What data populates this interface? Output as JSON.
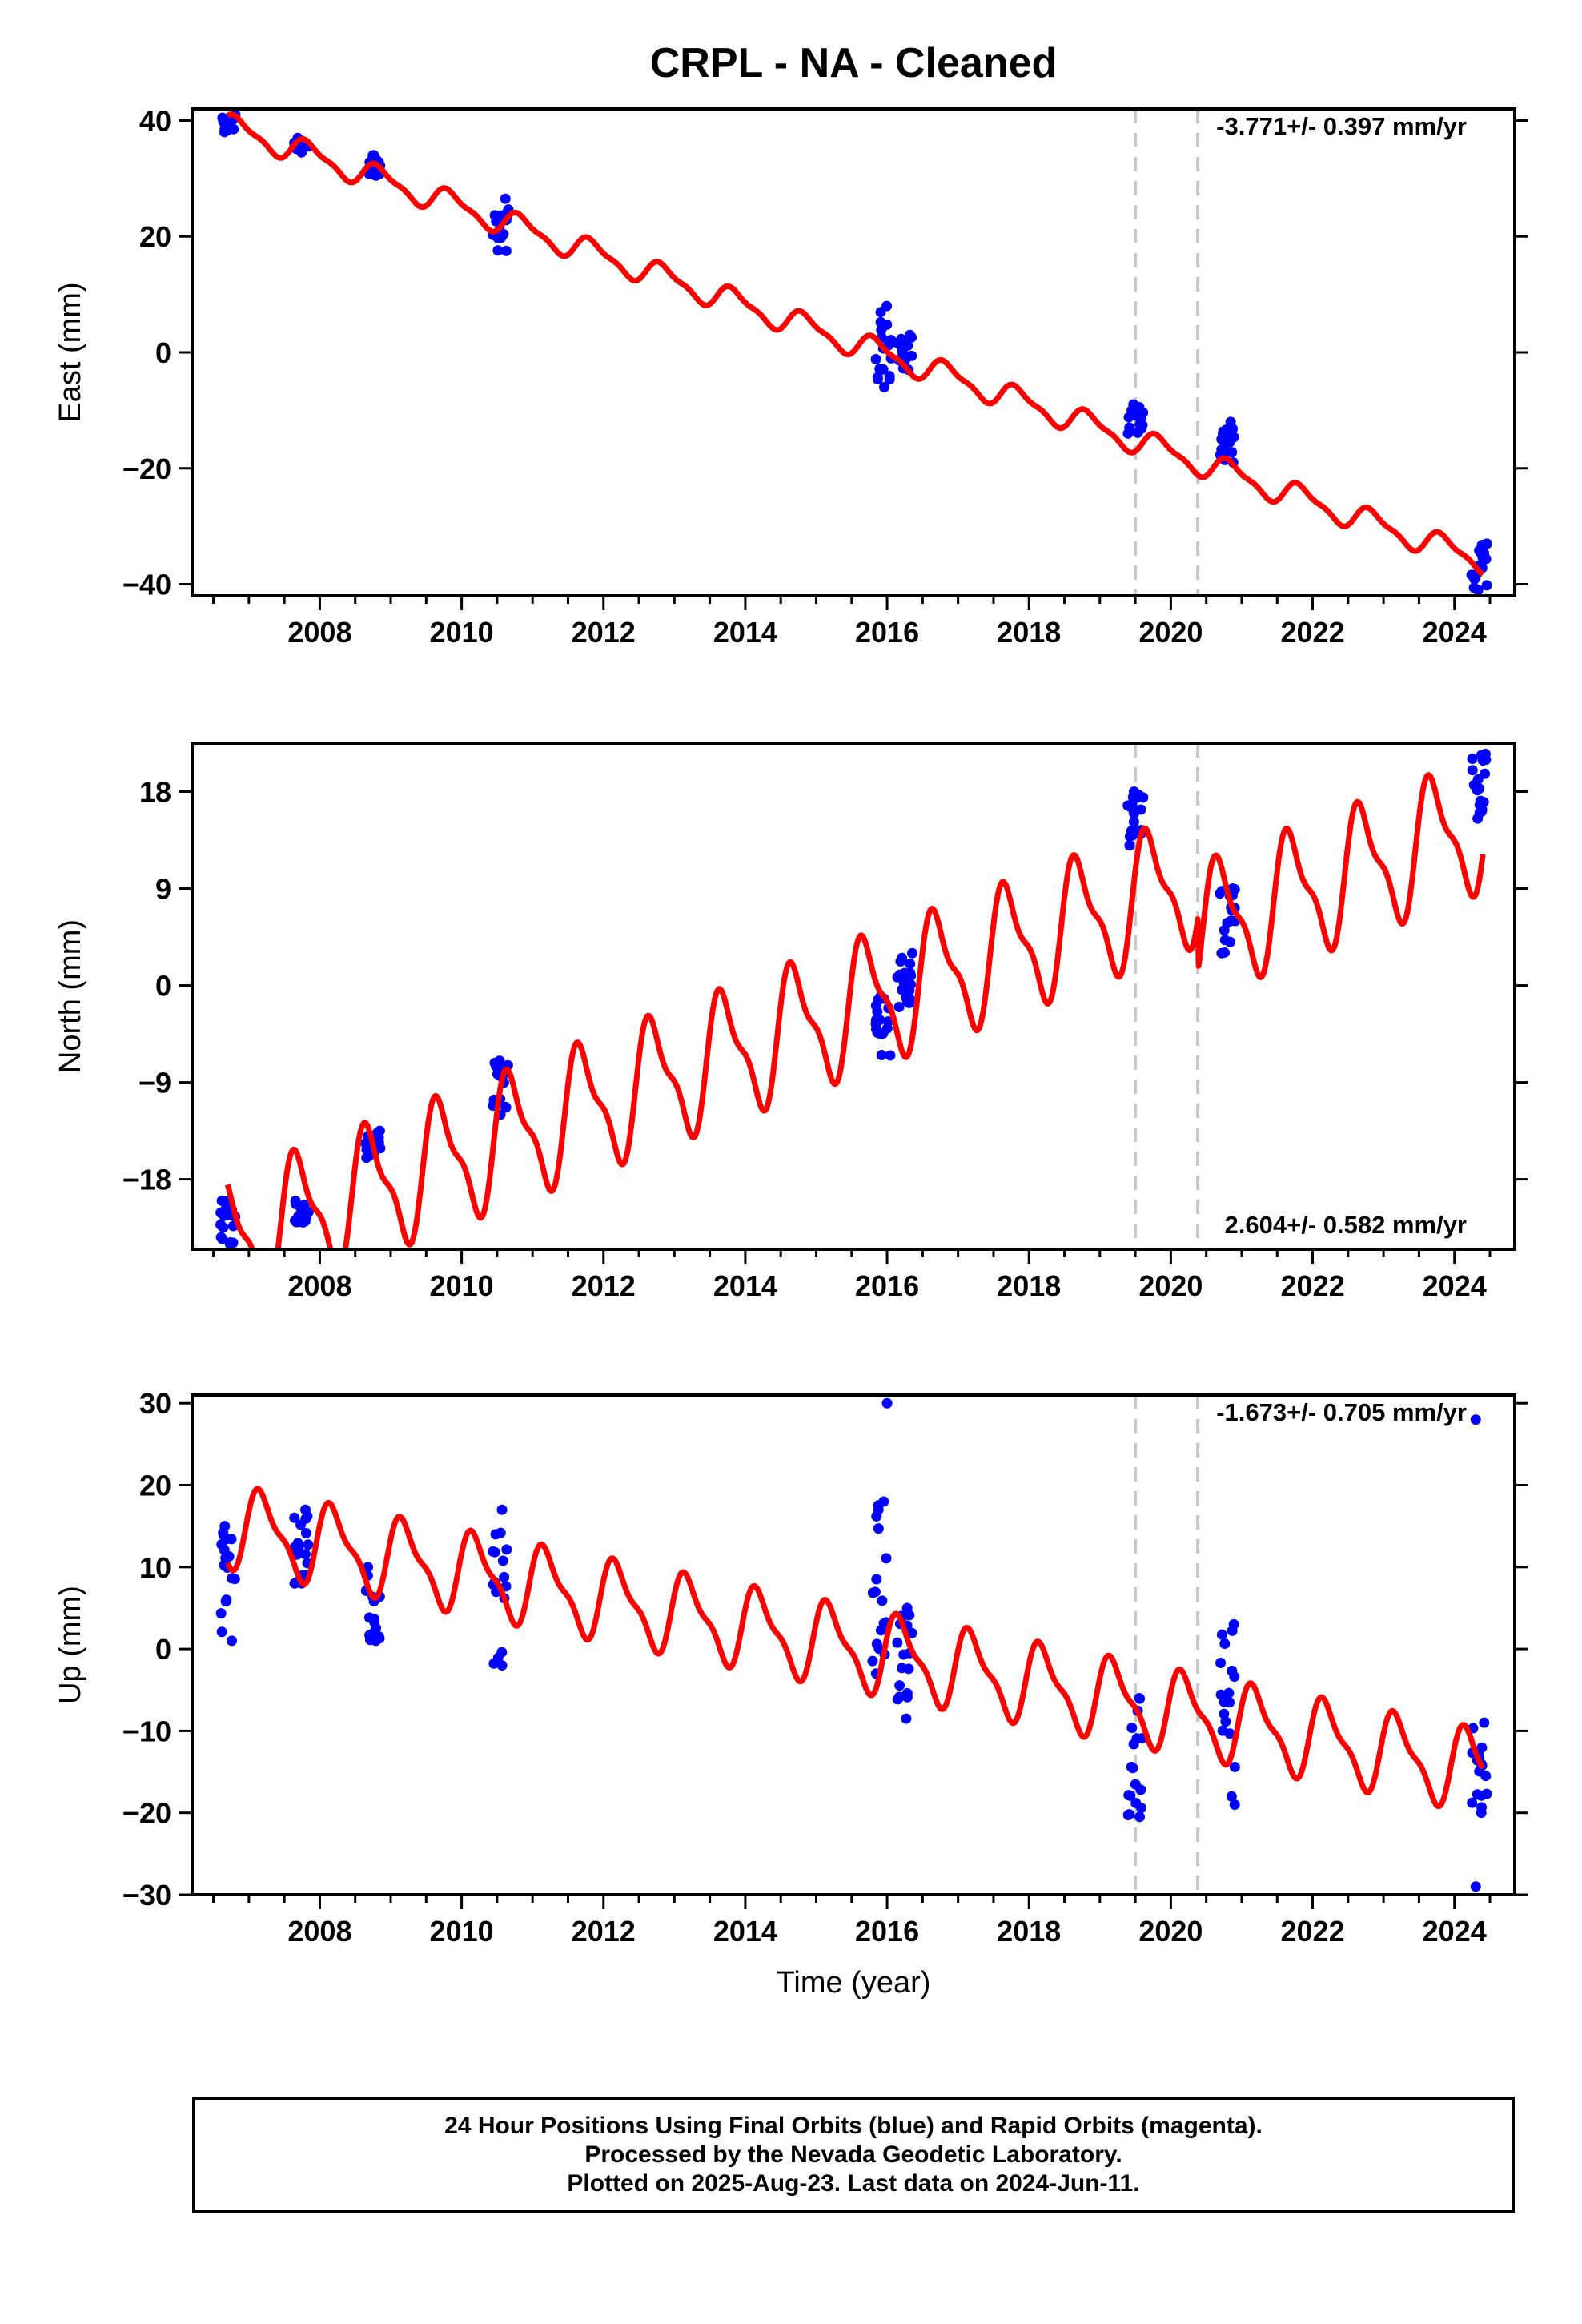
{
  "title": "CRPL  - NA - Cleaned",
  "colors": {
    "model": "#ff0000",
    "final_orbits": "#0000ff",
    "offset_line": "#c8c8c8",
    "frame": "#000000"
  },
  "chart_data": [
    {
      "type": "scatter",
      "component": "East",
      "ylabel": "East (mm)",
      "xlabel": "",
      "rate_label": "-3.771+/- 0.397 mm/yr",
      "rate_position": "top-right",
      "xlim": [
        2006.2,
        2024.85
      ],
      "ylim": [
        -42,
        42
      ],
      "yticks": [
        40,
        20,
        0,
        -20,
        -40
      ],
      "yticklabels": [
        "40",
        "20",
        "0",
        "−20",
        "−40"
      ],
      "xticks": [
        2008,
        2010,
        2012,
        2014,
        2016,
        2018,
        2020,
        2022,
        2024
      ],
      "offset_lines": [
        2019.5,
        2020.38
      ],
      "model": {
        "name": "model",
        "trend_start": 2006.7,
        "trend_end": 2024.4,
        "values_at_ends": [
          39,
          -36
        ],
        "seasonal_amplitude": 2.0,
        "phase_year": 0.6,
        "steps": []
      },
      "observations": [
        {
          "x": 2006.7,
          "y": [
            38,
            41
          ]
        },
        {
          "x": 2007.75,
          "y": [
            34.5,
            37
          ]
        },
        {
          "x": 2008.75,
          "y": [
            30.5,
            34
          ]
        },
        {
          "x": 2010.55,
          "y": [
            17.5,
            26.5
          ]
        },
        {
          "x": 2015.95,
          "y": [
            -6,
            8
          ]
        },
        {
          "x": 2016.25,
          "y": [
            -3,
            3
          ]
        },
        {
          "x": 2019.5,
          "y": [
            -14,
            -9
          ]
        },
        {
          "x": 2020.8,
          "y": [
            -19,
            -12
          ]
        },
        {
          "x": 2024.35,
          "y": [
            -41,
            -33
          ]
        }
      ]
    },
    {
      "type": "scatter",
      "component": "North",
      "ylabel": "North (mm)",
      "xlabel": "",
      "rate_label": "2.604+/- 0.582 mm/yr",
      "rate_position": "bottom-right",
      "xlim": [
        2006.2,
        2024.85
      ],
      "ylim": [
        -24.5,
        22.5
      ],
      "yticks": [
        18,
        9,
        0,
        -9,
        -18
      ],
      "yticklabels": [
        "18",
        "9",
        "0",
        "−9",
        "−18"
      ],
      "xticks": [
        2008,
        2010,
        2012,
        2014,
        2016,
        2018,
        2020,
        2022,
        2024
      ],
      "offset_lines": [
        2019.5,
        2020.38
      ],
      "model": {
        "name": "model",
        "trend_start": 2006.7,
        "trend_end": 2024.4,
        "values_at_ends": [
          -24,
          20
        ],
        "seasonal_amplitude": 5.5,
        "phase_year": 0.45,
        "steps": [
          {
            "x": 2020.38,
            "dy": -5
          }
        ]
      },
      "observations": [
        {
          "x": 2006.7,
          "y": [
            -24,
            -20
          ]
        },
        {
          "x": 2007.75,
          "y": [
            -22,
            -20
          ]
        },
        {
          "x": 2008.75,
          "y": [
            -16,
            -13.5
          ]
        },
        {
          "x": 2010.55,
          "y": [
            -12,
            -7
          ]
        },
        {
          "x": 2015.95,
          "y": [
            -6.5,
            -1
          ]
        },
        {
          "x": 2016.25,
          "y": [
            -2,
            3
          ]
        },
        {
          "x": 2019.5,
          "y": [
            13,
            18
          ]
        },
        {
          "x": 2020.8,
          "y": [
            3,
            9
          ]
        },
        {
          "x": 2024.35,
          "y": [
            15.5,
            21.5
          ]
        }
      ]
    },
    {
      "type": "scatter",
      "component": "Up",
      "ylabel": "Up (mm)",
      "xlabel": "Time (year)",
      "rate_label": "-1.673+/- 0.705 mm/yr",
      "rate_position": "top-right",
      "xlim": [
        2006.2,
        2024.85
      ],
      "ylim": [
        -30,
        31
      ],
      "yticks": [
        30,
        20,
        10,
        0,
        -10,
        -20,
        -30
      ],
      "yticklabels": [
        "30",
        "20",
        "10",
        "0",
        "−10",
        "−20",
        "−30"
      ],
      "xticks": [
        2008,
        2010,
        2012,
        2014,
        2016,
        2018,
        2020,
        2022,
        2024
      ],
      "offset_lines": [
        2019.5,
        2020.38
      ],
      "model": {
        "name": "model",
        "trend_start": 2006.7,
        "trend_end": 2024.4,
        "values_at_ends": [
          15,
          -15
        ],
        "seasonal_amplitude": 4.5,
        "phase_year": 0.95,
        "steps": []
      },
      "observations": [
        {
          "x": 2006.7,
          "y": [
            1,
            15
          ]
        },
        {
          "x": 2007.75,
          "y": [
            8,
            17
          ]
        },
        {
          "x": 2008.75,
          "y": [
            1,
            10
          ]
        },
        {
          "x": 2010.55,
          "y": [
            -2,
            17
          ]
        },
        {
          "x": 2015.9,
          "y": [
            -3,
            18
          ]
        },
        {
          "x": 2016.0,
          "y": [
            30,
            30
          ]
        },
        {
          "x": 2016.25,
          "y": [
            -8.5,
            5
          ]
        },
        {
          "x": 2019.5,
          "y": [
            -20.5,
            -6
          ]
        },
        {
          "x": 2020.8,
          "y": [
            -19,
            3
          ]
        },
        {
          "x": 2024.35,
          "y": [
            -20,
            -9
          ]
        },
        {
          "x": 2024.3,
          "y": [
            -29,
            -29
          ]
        },
        {
          "x": 2024.3,
          "y": [
            28,
            28
          ]
        }
      ]
    }
  ],
  "footer": {
    "line1": "24 Hour Positions Using Final Orbits (blue) and Rapid Orbits (magenta).",
    "line2": "Processed by the Nevada Geodetic Laboratory.",
    "line3": "Plotted on 2025-Aug-23. Last data on 2024-Jun-11."
  }
}
